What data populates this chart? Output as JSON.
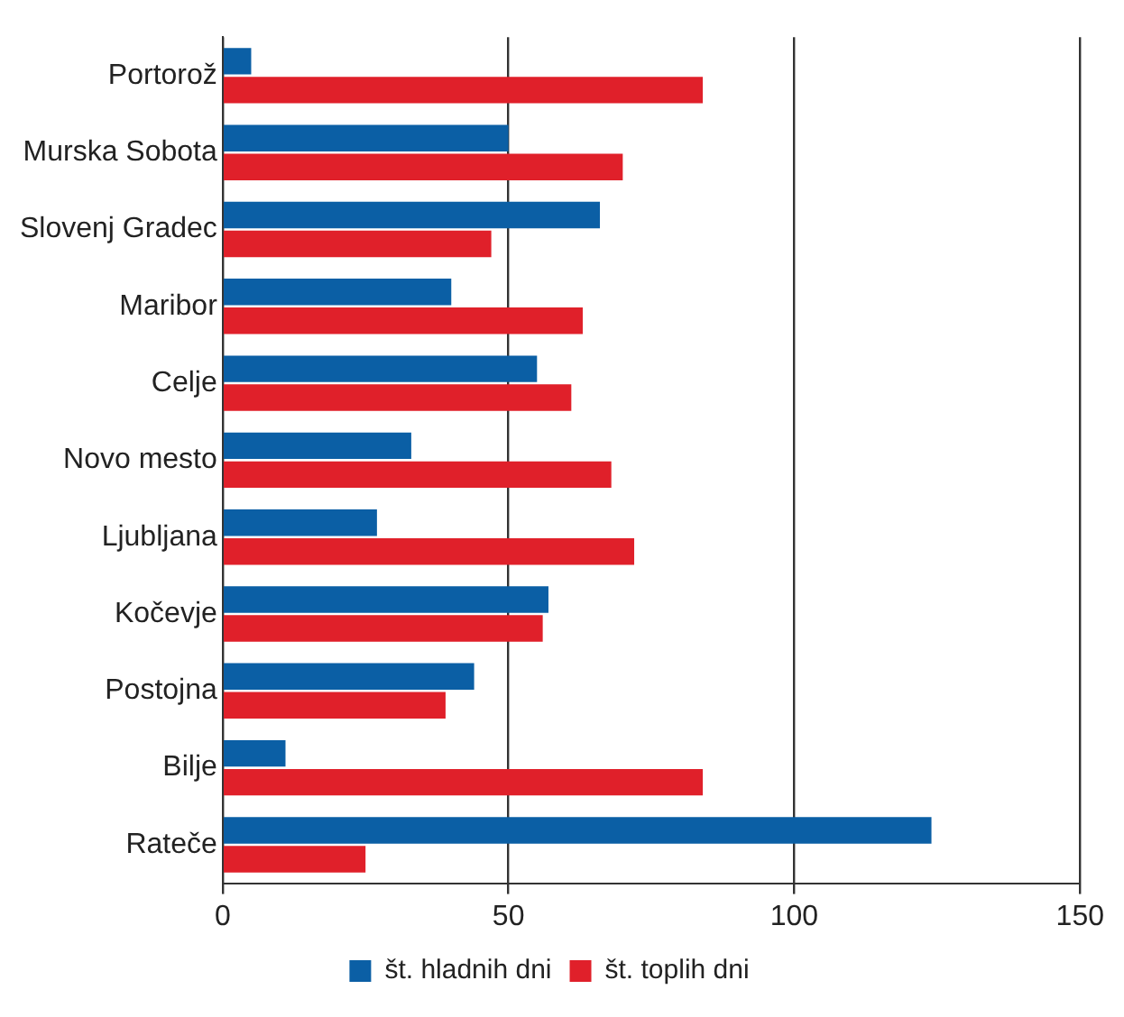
{
  "chart_data": {
    "type": "bar",
    "orientation": "horizontal",
    "categories": [
      "Portorož",
      "Murska Sobota",
      "Slovenj Gradec",
      "Maribor",
      "Celje",
      "Novo mesto",
      "Ljubljana",
      "Kočevje",
      "Postojna",
      "Bilje",
      "Rateče"
    ],
    "series": [
      {
        "name": "št. hladnih dni",
        "color": "#0b5fa5",
        "values": [
          5,
          50,
          66,
          40,
          55,
          33,
          27,
          57,
          44,
          11,
          124
        ]
      },
      {
        "name": "št. toplih dni",
        "color": "#e0202a",
        "values": [
          84,
          70,
          47,
          63,
          61,
          68,
          72,
          56,
          39,
          84,
          25
        ]
      }
    ],
    "xlim": [
      0,
      150
    ],
    "xticks": [
      0,
      50,
      100,
      150
    ],
    "grid": "x",
    "legend": "bottom"
  }
}
